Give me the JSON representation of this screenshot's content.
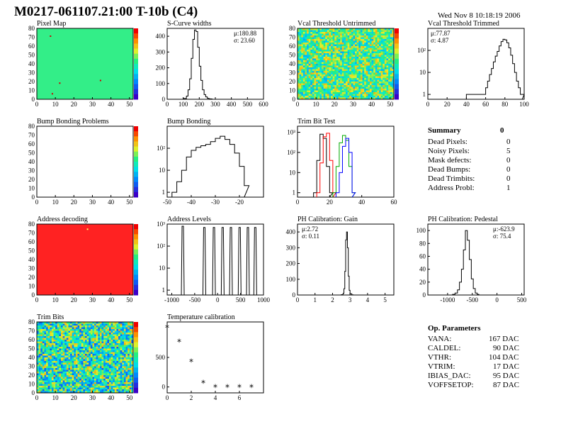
{
  "header": {
    "title": "M0217-061107.21:00 T-10b (C4)",
    "timestamp": "Wed Nov  8 10:18:19 2006"
  },
  "panels": {
    "pixel_map": {
      "title": "Pixel Map"
    },
    "scurve": {
      "title": "S-Curve widths",
      "stat1": "μ:180.88",
      "stat2": "σ: 23.60"
    },
    "vcal_untrimmed": {
      "title": "Vcal Threshold Untrimmed"
    },
    "vcal_trimmed": {
      "title": "Vcal Threshold Trimmed",
      "stat1": "μ:77.87",
      "stat2": "σ: 4.87"
    },
    "bump_problems": {
      "title": "Bump Bonding Problems"
    },
    "bump_bonding": {
      "title": "Bump Bonding"
    },
    "trim_bit_test": {
      "title": "Trim Bit Test"
    },
    "address_decoding": {
      "title": "Address decoding"
    },
    "address_levels": {
      "title": "Address Levels"
    },
    "ph_gain": {
      "title": "PH Calibration: Gain",
      "stat1": "μ:2.72",
      "stat2": "σ: 0.11"
    },
    "ph_pedestal": {
      "title": "PH Calibration: Pedestal",
      "stat1": "μ:-623.9",
      "stat2": "σ: 75.4"
    },
    "trim_bits": {
      "title": "Trim Bits"
    },
    "temperature": {
      "title": "Temperature calibration"
    }
  },
  "summary": {
    "title": "Summary",
    "total": "0",
    "rows": [
      {
        "label": "Dead Pixels:",
        "value": "0"
      },
      {
        "label": "Noisy Pixels:",
        "value": "5"
      },
      {
        "label": "Mask defects:",
        "value": "0"
      },
      {
        "label": "Dead Bumps:",
        "value": "0"
      },
      {
        "label": "Dead Trimbits:",
        "value": "0"
      },
      {
        "label": "Address Probl:",
        "value": "1"
      }
    ]
  },
  "op_parameters": {
    "title": "Op. Parameters",
    "rows": [
      {
        "label": "VANA:",
        "value": "167 DAC"
      },
      {
        "label": "CALDEL:",
        "value": "90 DAC"
      },
      {
        "label": "VTHR:",
        "value": "104 DAC"
      },
      {
        "label": "VTRIM:",
        "value": "17 DAC"
      },
      {
        "label": "IBIAS_DAC:",
        "value": "95 DAC"
      },
      {
        "label": "VOFFSETOP:",
        "value": "87 DAC"
      }
    ]
  },
  "chart_data": [
    {
      "id": "pixel_map",
      "type": "heatmap",
      "title": "Pixel Map",
      "xlim": [
        0,
        52
      ],
      "ylim": [
        0,
        80
      ],
      "xticks": [
        "0",
        "10",
        "20",
        "30",
        "40",
        "50"
      ],
      "yticks": [
        "0",
        "10",
        "20",
        "30",
        "40",
        "50",
        "60",
        "70",
        "80"
      ],
      "fill": "#33ee88",
      "hot_pixels": [
        [
          7,
          72
        ],
        [
          12,
          19
        ],
        [
          34,
          22
        ],
        [
          8,
          7
        ]
      ]
    },
    {
      "id": "scurve",
      "type": "line",
      "title": "S-Curve widths",
      "xlim": [
        0,
        600
      ],
      "ylim": [
        0,
        450
      ],
      "xticks": [
        "0",
        "100",
        "200",
        "300",
        "400",
        "500",
        "600"
      ],
      "yticks": [
        "0",
        "100",
        "200",
        "300",
        "400"
      ],
      "x": [
        100,
        120,
        130,
        140,
        150,
        160,
        170,
        180,
        190,
        200,
        210,
        220,
        230,
        240,
        250,
        260,
        270,
        280
      ],
      "y": [
        5,
        20,
        60,
        130,
        260,
        380,
        440,
        430,
        330,
        210,
        120,
        60,
        30,
        15,
        6,
        3,
        2,
        0
      ]
    },
    {
      "id": "vcal_untrimmed",
      "type": "heatmap",
      "title": "Vcal Threshold Untrimmed",
      "xlim": [
        0,
        52
      ],
      "ylim": [
        0,
        80
      ],
      "xticks": [
        "0",
        "10",
        "20",
        "30",
        "40",
        "50"
      ],
      "yticks": [
        "0",
        "10",
        "20",
        "30",
        "40",
        "50",
        "60",
        "70",
        "80"
      ]
    },
    {
      "id": "vcal_trimmed",
      "type": "line",
      "title": "Vcal Threshold Trimmed",
      "xlim": [
        0,
        100
      ],
      "ylim_log": [
        0.6,
        1000
      ],
      "log": true,
      "xticks": [
        "0",
        "20",
        "40",
        "60",
        "80",
        "100"
      ],
      "yticks": [
        "1",
        "10",
        "10²"
      ],
      "x": [
        40,
        60,
        62,
        64,
        66,
        68,
        70,
        72,
        74,
        76,
        78,
        80,
        82,
        84,
        86,
        88,
        90,
        92,
        94,
        96,
        98
      ],
      "y": [
        1,
        2,
        4,
        8,
        15,
        30,
        55,
        90,
        160,
        250,
        320,
        300,
        220,
        130,
        60,
        25,
        10,
        4,
        2,
        1,
        1
      ]
    },
    {
      "id": "bump_problems",
      "type": "heatmap",
      "title": "Bump Bonding Problems",
      "xlim": [
        0,
        52
      ],
      "ylim": [
        0,
        80
      ],
      "xticks": [
        "0",
        "10",
        "20",
        "30",
        "40",
        "50"
      ],
      "yticks": [
        "0",
        "10",
        "20",
        "30",
        "40",
        "50",
        "60",
        "70",
        "80"
      ],
      "fill": "#ffffff"
    },
    {
      "id": "bump_bonding",
      "type": "line",
      "title": "Bump Bonding",
      "xlim": [
        -50,
        -10
      ],
      "ylim_log": [
        0.6,
        1000
      ],
      "log": true,
      "xticks": [
        "-50",
        "-40",
        "-30",
        "-20"
      ],
      "yticks": [
        "1",
        "10",
        "10²"
      ],
      "x": [
        -48,
        -46,
        -44,
        -42,
        -40,
        -38,
        -36,
        -34,
        -32,
        -30,
        -28,
        -26,
        -24,
        -22,
        -20,
        -18
      ],
      "y": [
        1,
        3,
        10,
        40,
        80,
        110,
        130,
        150,
        200,
        280,
        350,
        250,
        150,
        60,
        15,
        2
      ]
    },
    {
      "id": "trim_bit_test",
      "type": "line",
      "title": "Trim Bit Test",
      "xlim": [
        0,
        60
      ],
      "ylim_log": [
        0.6,
        2000
      ],
      "log": true,
      "xticks": [
        "0",
        "20",
        "40",
        "60"
      ],
      "yticks": [
        "1",
        "10",
        "10²",
        "10³"
      ],
      "series": [
        {
          "color": "#000000",
          "x": [
            10,
            12,
            14,
            16,
            18,
            20
          ],
          "y": [
            1,
            40,
            800,
            500,
            20,
            1
          ]
        },
        {
          "color": "#ff0000",
          "x": [
            12,
            14,
            16,
            18,
            20,
            22
          ],
          "y": [
            1,
            30,
            600,
            900,
            40,
            1
          ]
        },
        {
          "color": "#00aa00",
          "x": [
            22,
            24,
            26,
            28,
            30,
            32,
            34
          ],
          "y": [
            1,
            20,
            300,
            700,
            400,
            20,
            1
          ]
        },
        {
          "color": "#0000ff",
          "x": [
            24,
            26,
            28,
            30,
            32,
            34
          ],
          "y": [
            1,
            10,
            200,
            500,
            100,
            1
          ]
        }
      ]
    },
    {
      "id": "address_decoding",
      "type": "heatmap",
      "title": "Address decoding",
      "xlim": [
        0,
        52
      ],
      "ylim": [
        0,
        80
      ],
      "xticks": [
        "0",
        "10",
        "20",
        "30",
        "40",
        "50"
      ],
      "yticks": [
        "0",
        "10",
        "20",
        "30",
        "40",
        "50",
        "60",
        "70",
        "80"
      ],
      "fill": "#ff2222",
      "hot_pixels": [
        [
          27,
          75
        ]
      ]
    },
    {
      "id": "address_levels",
      "type": "line",
      "title": "Address Levels",
      "xlim": [
        -1100,
        1000
      ],
      "ylim_log": [
        0.6,
        1000
      ],
      "log": true,
      "xticks": [
        "-1000",
        "-500",
        "0",
        "500",
        "1000"
      ],
      "yticks": [
        "1",
        "10",
        "10²",
        "10³"
      ],
      "peaks": [
        -760,
        -290,
        -80,
        110,
        290,
        480,
        660,
        820
      ],
      "peak_heights": [
        800,
        700,
        700,
        700,
        700,
        700,
        700,
        700
      ]
    },
    {
      "id": "ph_gain",
      "type": "line",
      "title": "PH Calibration: Gain",
      "xlim": [
        0,
        5.5
      ],
      "ylim": [
        0,
        450
      ],
      "xticks": [
        "0",
        "1",
        "2",
        "3",
        "4",
        "5"
      ],
      "yticks": [
        "0",
        "100",
        "200",
        "300",
        "400"
      ],
      "x": [
        2.5,
        2.6,
        2.65,
        2.7,
        2.75,
        2.8,
        2.85,
        2.9,
        2.95,
        3.0,
        3.1
      ],
      "y": [
        2,
        10,
        40,
        150,
        350,
        400,
        300,
        120,
        30,
        8,
        1
      ]
    },
    {
      "id": "ph_pedestal",
      "type": "line",
      "title": "PH Calibration: Pedestal",
      "xlim": [
        -1400,
        550
      ],
      "ylim": [
        0,
        110
      ],
      "xticks": [
        "-1000",
        "-500",
        "0",
        "500"
      ],
      "yticks": [
        "0",
        "20",
        "40",
        "60",
        "80",
        "100"
      ],
      "x": [
        -900,
        -850,
        -800,
        -760,
        -720,
        -680,
        -640,
        -600,
        -560,
        -520,
        -480,
        -440,
        -400
      ],
      "y": [
        1,
        3,
        8,
        20,
        40,
        70,
        100,
        85,
        55,
        25,
        10,
        3,
        1
      ]
    },
    {
      "id": "trim_bits",
      "type": "heatmap",
      "title": "Trim Bits",
      "xlim": [
        0,
        52
      ],
      "ylim": [
        0,
        80
      ],
      "xticks": [
        "0",
        "10",
        "20",
        "30",
        "40",
        "50"
      ],
      "yticks": [
        "0",
        "10",
        "20",
        "30",
        "40",
        "50",
        "60",
        "70",
        "80"
      ]
    },
    {
      "id": "temperature",
      "type": "scatter",
      "title": "Temperature calibration",
      "xlim": [
        0,
        8
      ],
      "ylim": [
        -100,
        1100
      ],
      "xticks": [
        "0",
        "2",
        "4",
        "6"
      ],
      "yticks": [
        "0",
        "500"
      ],
      "x": [
        0,
        1,
        2,
        3,
        4,
        5,
        6,
        7
      ],
      "y": [
        1000,
        760,
        420,
        60,
        -10,
        -10,
        -10,
        -10
      ]
    }
  ]
}
